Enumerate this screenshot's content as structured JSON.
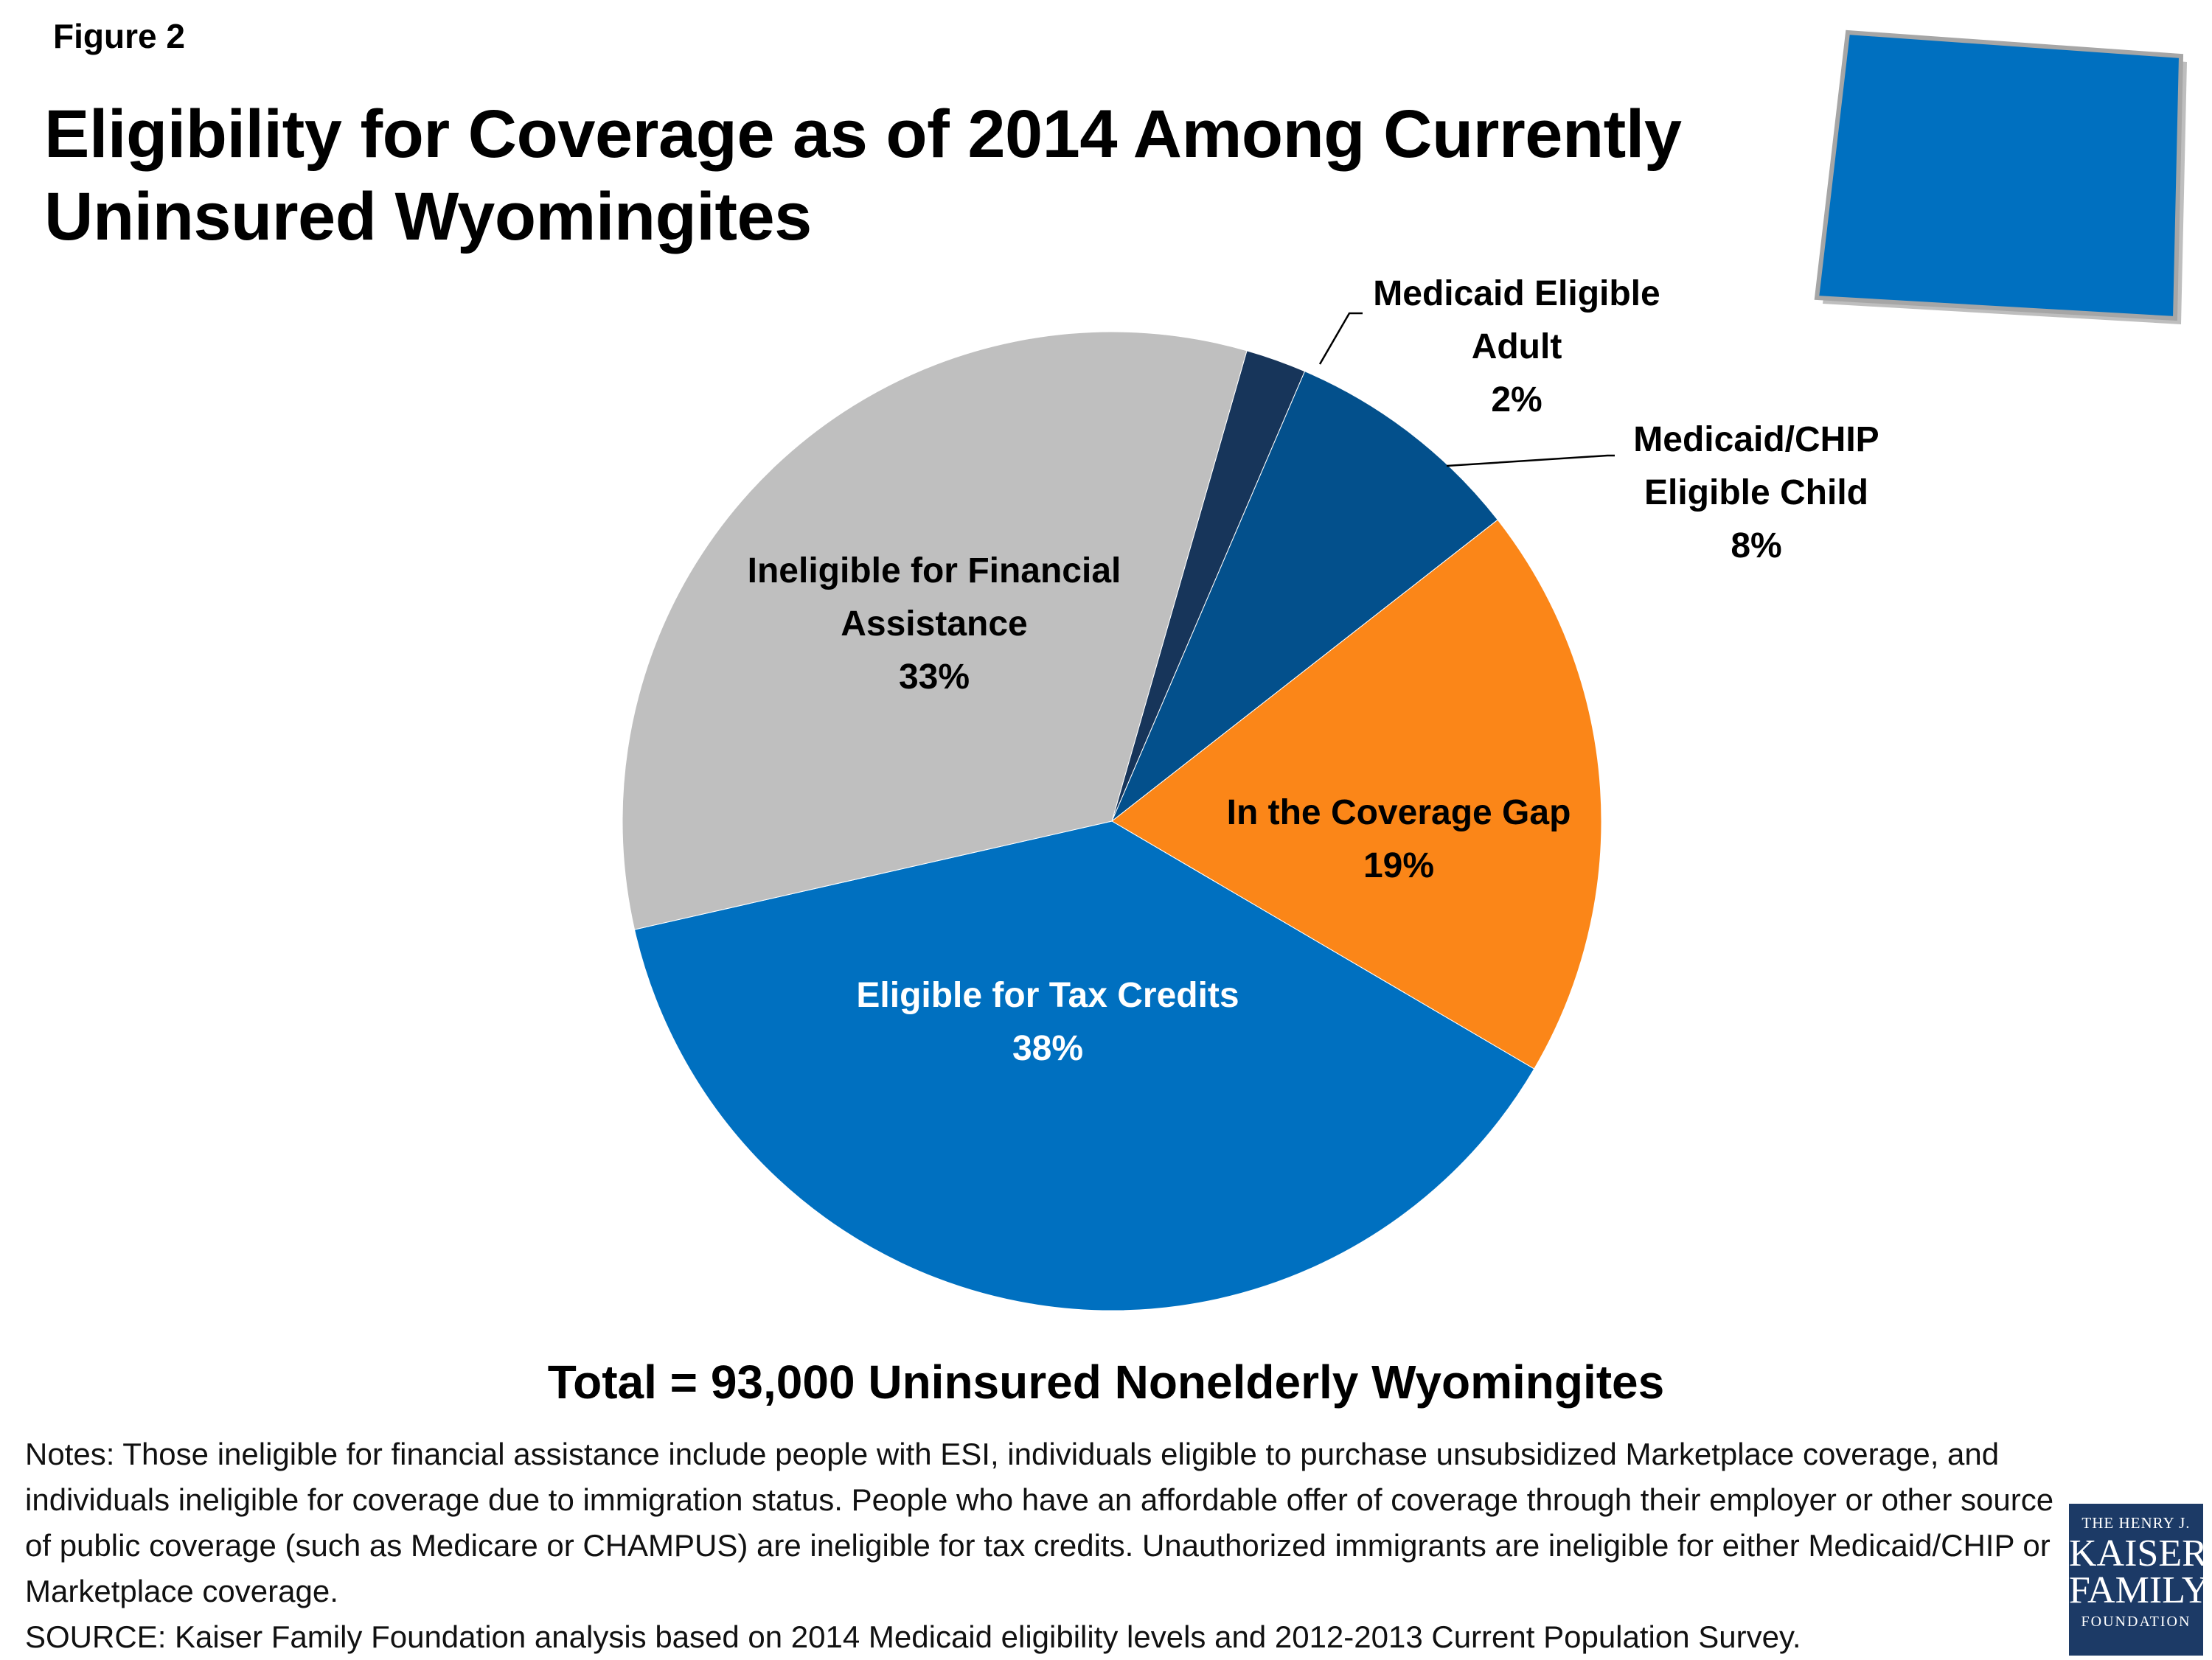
{
  "figure_label": "Figure 2",
  "title_line1": "Eligibility for Coverage as of 2014 Among Currently",
  "title_line2": "Uninsured Wyomingites",
  "chart_data": {
    "type": "pie",
    "title": "Eligibility for Coverage as of 2014 Among Currently Uninsured Wyomingites",
    "start_angle_deg": 16,
    "direction": "clockwise",
    "slices": [
      {
        "label": "Medicaid Eligible Adult",
        "value": 2,
        "display": "2%",
        "color": "#17355a",
        "label_color": "#000000",
        "label_position": "outside"
      },
      {
        "label": "Medicaid/CHIP Eligible Child",
        "value": 8,
        "display": "8%",
        "color": "#03508c",
        "label_color": "#000000",
        "label_position": "outside"
      },
      {
        "label": "In the Coverage Gap",
        "value": 19,
        "display": "19%",
        "color": "#fb8618",
        "label_color": "#000000",
        "label_position": "inside"
      },
      {
        "label": "Eligible for Tax Credits",
        "value": 38,
        "display": "38%",
        "color": "#0070c0",
        "label_color": "#ffffff",
        "label_position": "inside"
      },
      {
        "label": "Ineligible for Financial Assistance",
        "value": 33,
        "display": "33%",
        "color": "#bfbfbf",
        "label_color": "#000000",
        "label_position": "inside"
      }
    ]
  },
  "labels": {
    "medicaid_adult": [
      "Medicaid Eligible",
      "Adult",
      "2%"
    ],
    "medicaid_child": [
      "Medicaid/CHIP",
      "Eligible Child",
      "8%"
    ],
    "coverage_gap": [
      "In the Coverage Gap",
      "19%"
    ],
    "tax_credits": [
      "Eligible for Tax Credits",
      "38%"
    ],
    "ineligible": [
      "Ineligible for Financial",
      "Assistance",
      "33%"
    ]
  },
  "total": "Total = 93,000 Uninsured Nonelderly Wyomingites",
  "notes": "Notes: Those ineligible for financial assistance include people with ESI, individuals eligible to purchase unsubsidized Marketplace coverage, and individuals ineligible for coverage due to immigration status. People who have an affordable offer of coverage through their employer or other source of public coverage (such as Medicare or CHAMPUS) are ineligible for tax credits. Unauthorized immigrants are ineligible for either Medicaid/CHIP or Marketplace coverage.",
  "source": "SOURCE: Kaiser Family Foundation analysis based on 2014 Medicaid eligibility levels and 2012-2013 Current Population Survey.",
  "logo": {
    "line1": "THE HENRY J.",
    "line2": "KAISER",
    "line3": "FAMILY",
    "line4": "FOUNDATION"
  },
  "colors": {
    "state_fill": "#0070c0",
    "state_shadow": "#888888",
    "logo_bg": "#1c3a66"
  }
}
